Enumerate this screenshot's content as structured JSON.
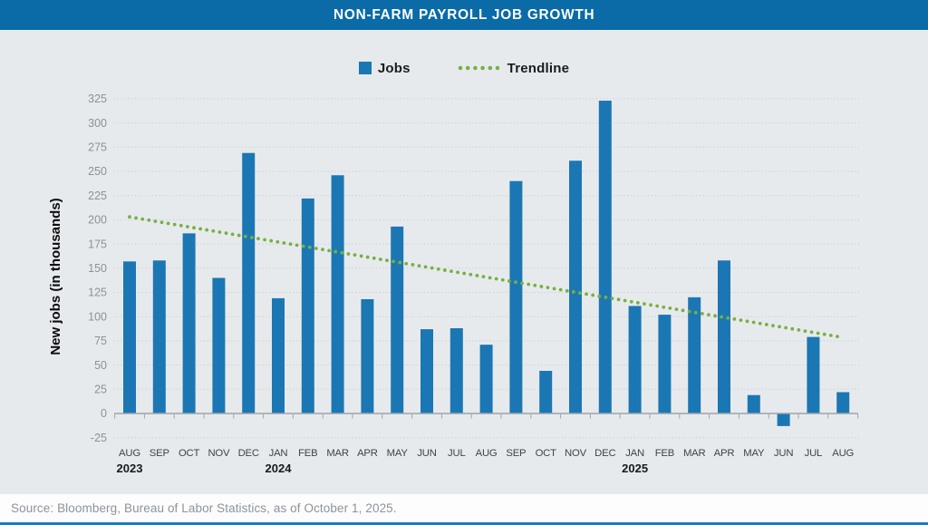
{
  "header": {
    "title": "NON-FARM PAYROLL JOB GROWTH"
  },
  "legend": {
    "jobs_label": "Jobs",
    "trendline_label": "Trendline"
  },
  "source": {
    "text": "Source: Bloomberg, Bureau of Labor Statistics, as of October 1, 2025."
  },
  "colors": {
    "header_blue": "#0A6BA6",
    "bar_blue": "#1B77B4",
    "trend_green": "#77B043",
    "background": "#E7EAED",
    "gridline": "#C5CBD0",
    "axis_line": "#9CA3A9",
    "y_tick_label": "#8B9197",
    "month_label": "#3E4347",
    "year_label": "#17191B",
    "source_text": "#8D9398",
    "source_bg": "#FDFDFE",
    "bottom_rule": "#2379B6"
  },
  "chart_data": {
    "type": "bar",
    "title": "NON-FARM PAYROLL JOB GROWTH",
    "xlabel": "",
    "ylabel": "New jobs (in thousands)",
    "categories": [
      "AUG",
      "SEP",
      "OCT",
      "NOV",
      "DEC",
      "JAN",
      "FEB",
      "MAR",
      "APR",
      "MAY",
      "JUN",
      "JUL",
      "AUG",
      "SEP",
      "OCT",
      "NOV",
      "DEC",
      "JAN",
      "FEB",
      "MAR",
      "APR",
      "MAY",
      "JUN",
      "JUL",
      "AUG"
    ],
    "year_markers": [
      {
        "index": 0,
        "label": "2023"
      },
      {
        "index": 5,
        "label": "2024"
      },
      {
        "index": 17,
        "label": "2025"
      }
    ],
    "series": [
      {
        "name": "Jobs",
        "values": [
          157,
          158,
          186,
          140,
          269,
          119,
          222,
          246,
          118,
          193,
          87,
          88,
          71,
          240,
          44,
          261,
          323,
          111,
          102,
          120,
          158,
          19,
          -13,
          79,
          22
        ]
      }
    ],
    "trendline": {
      "name": "Trendline",
      "start": 203,
      "end": 78.5
    },
    "y_ticks": [
      325,
      300,
      275,
      250,
      225,
      200,
      175,
      150,
      125,
      100,
      75,
      50,
      25,
      0,
      -25
    ],
    "ylim": [
      -25,
      325
    ],
    "grid": true,
    "legend_position": "top"
  }
}
